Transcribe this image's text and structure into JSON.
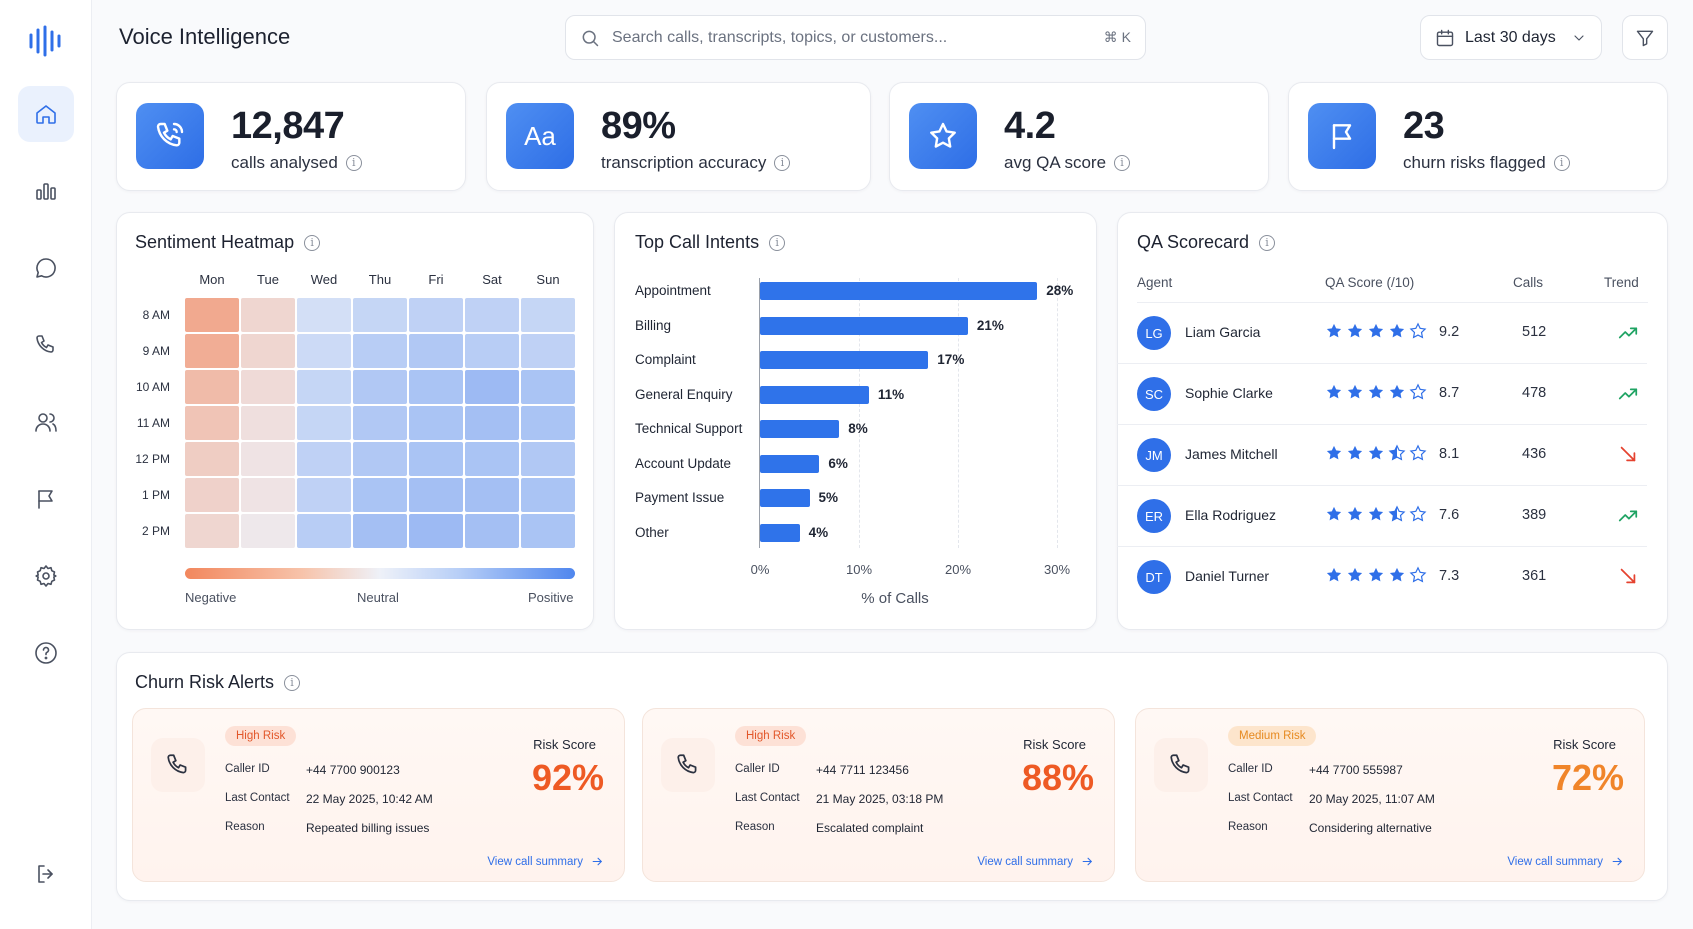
{
  "header": {
    "title": "Voice Intelligence",
    "search_placeholder": "Search calls, transcripts, topics, or customers...",
    "search_shortcut": "⌘ K",
    "date_range": "Last 30 days"
  },
  "sidebar": {
    "items": [
      {
        "name": "home",
        "active": true
      },
      {
        "name": "analytics"
      },
      {
        "name": "conversations"
      },
      {
        "name": "calls"
      },
      {
        "name": "customers"
      },
      {
        "name": "flags"
      },
      {
        "name": "settings"
      },
      {
        "name": "help"
      },
      {
        "name": "logout"
      }
    ]
  },
  "kpis": [
    {
      "value": "12,847",
      "label": "calls analysed",
      "icon": "phone-icon"
    },
    {
      "value": "89%",
      "label": "transcription accuracy",
      "icon": "text-aa-icon",
      "glyph": "Aa"
    },
    {
      "value": "4.2",
      "label": "avg QA score",
      "icon": "star-icon"
    },
    {
      "value": "23",
      "label": "churn risks flagged",
      "icon": "flag-icon"
    }
  ],
  "heatmap": {
    "title": "Sentiment Heatmap",
    "days": [
      "Mon",
      "Tue",
      "Wed",
      "Thu",
      "Fri",
      "Sat",
      "Sun"
    ],
    "times": [
      "8 AM",
      "9 AM",
      "10 AM",
      "11 AM",
      "12 PM",
      "1 PM",
      "2 PM"
    ],
    "values": [
      [
        -0.8,
        -0.3,
        0.2,
        0.3,
        0.35,
        0.35,
        0.3
      ],
      [
        -0.75,
        -0.3,
        0.25,
        0.4,
        0.45,
        0.4,
        0.35
      ],
      [
        -0.6,
        -0.25,
        0.3,
        0.45,
        0.5,
        0.6,
        0.5
      ],
      [
        -0.5,
        -0.2,
        0.3,
        0.45,
        0.5,
        0.55,
        0.5
      ],
      [
        -0.4,
        -0.15,
        0.35,
        0.45,
        0.5,
        0.5,
        0.45
      ],
      [
        -0.35,
        -0.15,
        0.35,
        0.5,
        0.55,
        0.55,
        0.5
      ],
      [
        -0.3,
        -0.1,
        0.4,
        0.55,
        0.6,
        0.55,
        0.5
      ]
    ],
    "legend": {
      "negative": "Negative",
      "neutral": "Neutral",
      "positive": "Positive"
    },
    "colors": {
      "negative": "#f2875d",
      "neutral": "#eef1f8",
      "positive": "#4f86ee"
    }
  },
  "intents": {
    "title": "Top Call Intents",
    "xlabel": "% of Calls",
    "xticks": [
      "0%",
      "10%",
      "20%",
      "30%"
    ]
  },
  "chart_data": {
    "type": "bar",
    "orientation": "horizontal",
    "title": "Top Call Intents",
    "xlabel": "% of Calls",
    "categories": [
      "Appointment",
      "Billing",
      "Complaint",
      "General Enquiry",
      "Technical Support",
      "Account Update",
      "Payment Issue",
      "Other"
    ],
    "values": [
      28,
      21,
      17,
      11,
      8,
      6,
      5,
      4
    ],
    "value_labels": [
      "28%",
      "21%",
      "17%",
      "11%",
      "8%",
      "6%",
      "5%",
      "4%"
    ],
    "xlim": [
      0,
      30
    ],
    "color": "#2f73ea"
  },
  "qa": {
    "title": "QA Scorecard",
    "headers": {
      "agent": "Agent",
      "score": "QA Score (/10)",
      "calls": "Calls",
      "trend": "Trend"
    },
    "rows": [
      {
        "initials": "LG",
        "name": "Liam Garcia",
        "stars": 4,
        "score": "9.2",
        "calls": "512",
        "trend": "up"
      },
      {
        "initials": "SC",
        "name": "Sophie Clarke",
        "stars": 4,
        "score": "8.7",
        "calls": "478",
        "trend": "up"
      },
      {
        "initials": "JM",
        "name": "James Mitchell",
        "stars": 3.5,
        "score": "8.1",
        "calls": "436",
        "trend": "down"
      },
      {
        "initials": "ER",
        "name": "Ella Rodriguez",
        "stars": 3.5,
        "score": "7.6",
        "calls": "389",
        "trend": "up"
      },
      {
        "initials": "DT",
        "name": "Daniel Turner",
        "stars": 4,
        "score": "7.3",
        "calls": "361",
        "trend": "down"
      }
    ],
    "colors": {
      "up": "#1fa363",
      "down": "#e5422f",
      "star": "#2f6fe8"
    }
  },
  "churn": {
    "title": "Churn Risk Alerts",
    "labels": {
      "caller_id": "Caller ID",
      "last_contact": "Last Contact",
      "reason": "Reason",
      "risk_score": "Risk Score",
      "link": "View call summary"
    },
    "alerts": [
      {
        "risk": "High Risk",
        "level": "high",
        "caller_id": "+44 7700 900123",
        "last_contact": "22 May 2025, 10:42 AM",
        "reason": "Repeated billing issues",
        "score": "92%"
      },
      {
        "risk": "High Risk",
        "level": "high",
        "caller_id": "+44 7711 123456",
        "last_contact": "21 May 2025, 03:18 PM",
        "reason": "Escalated complaint",
        "score": "88%"
      },
      {
        "risk": "Medium Risk",
        "level": "med",
        "caller_id": "+44 7700 555987",
        "last_contact": "20 May 2025, 11:07 AM",
        "reason": "Considering alternative",
        "score": "72%"
      }
    ],
    "colors": {
      "high": "#ee5a24",
      "med": "#f0852a"
    }
  }
}
